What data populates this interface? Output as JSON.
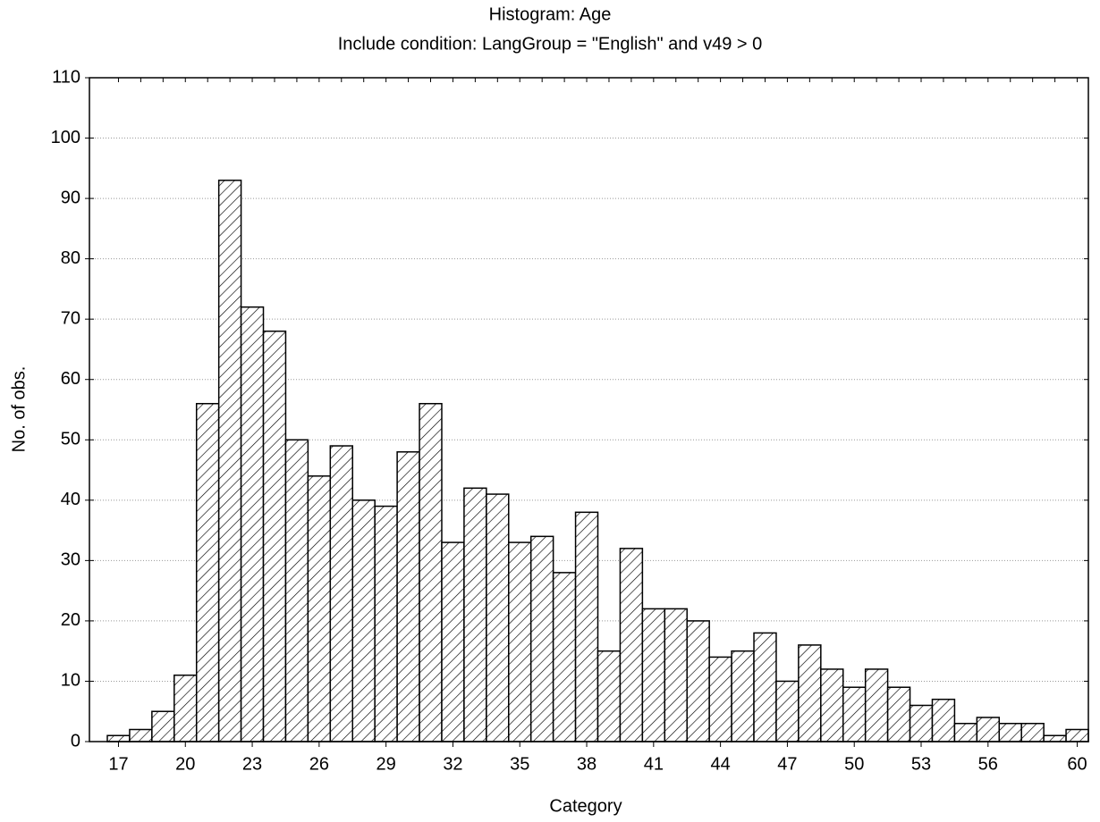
{
  "chart_data": {
    "type": "histogram",
    "title": "Histogram: Age",
    "subtitle": "Include condition: LangGroup = \"English\" and v49 > 0",
    "x_label": "Category",
    "y_label": "No. of obs.",
    "categories": [
      17,
      null,
      null,
      20,
      null,
      null,
      23,
      null,
      null,
      26,
      null,
      null,
      29,
      null,
      null,
      32,
      null,
      null,
      35,
      null,
      null,
      38,
      null,
      null,
      41,
      null,
      null,
      44,
      null,
      null,
      47,
      null,
      null,
      50,
      null,
      null,
      53,
      null,
      null,
      56,
      null,
      null,
      null,
      60
    ],
    "values": [
      1,
      2,
      5,
      11,
      56,
      93,
      72,
      68,
      50,
      44,
      49,
      40,
      39,
      48,
      56,
      33,
      42,
      41,
      33,
      34,
      28,
      38,
      15,
      32,
      22,
      22,
      20,
      14,
      15,
      18,
      10,
      16,
      12,
      9,
      12,
      9,
      6,
      7,
      3,
      4,
      3,
      3,
      1,
      2
    ],
    "color": "#000000",
    "ylim": [
      0,
      110
    ],
    "yticks": [
      0,
      10,
      20,
      30,
      40,
      50,
      60,
      70,
      80,
      90,
      100,
      110
    ],
    "grid": true
  }
}
